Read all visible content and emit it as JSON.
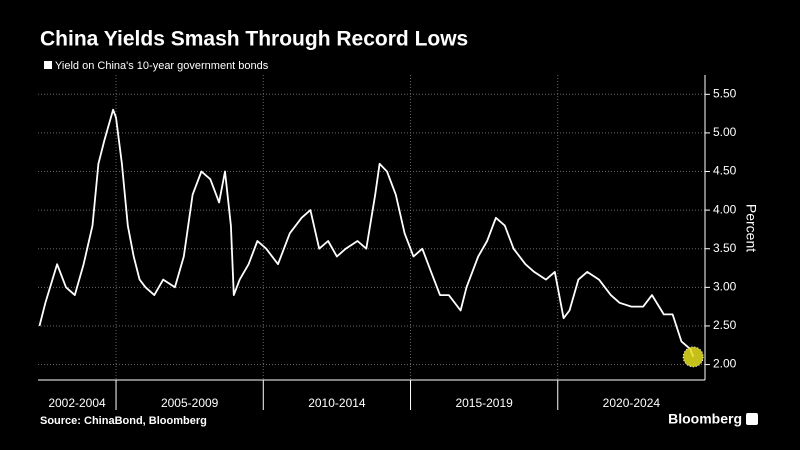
{
  "chart_data": {
    "type": "line",
    "title": "China Yields Smash Through Record Lows",
    "y_label": "Percent",
    "source": "Source: ChinaBond, Bloomberg",
    "brand": "Bloomberg",
    "xlim": [
      2002.35,
      2025.0
    ],
    "xperiods": [
      {
        "label": "2002-2004",
        "start": 2002.35,
        "end": 2005
      },
      {
        "label": "2005-2009",
        "start": 2005,
        "end": 2010
      },
      {
        "label": "2010-2014",
        "start": 2010,
        "end": 2015
      },
      {
        "label": "2015-2019",
        "start": 2015,
        "end": 2020
      },
      {
        "label": "2020-2024",
        "start": 2020,
        "end": 2025.0
      }
    ],
    "ylim": [
      1.8,
      5.75
    ],
    "yticks": [
      {
        "value": 2.0,
        "label": "2.00"
      },
      {
        "value": 2.5,
        "label": "2.50"
      },
      {
        "value": 3.0,
        "label": "3.00"
      },
      {
        "value": 3.5,
        "label": "3.50"
      },
      {
        "value": 4.0,
        "label": "4.00"
      },
      {
        "value": 4.5,
        "label": "4.50"
      },
      {
        "value": 5.0,
        "label": "5.00"
      },
      {
        "value": 5.5,
        "label": "5.50"
      }
    ],
    "grid": true,
    "highlight_last": true,
    "highlight_color": "#e6e01e",
    "series": [
      {
        "name": "Yield on China's 10-year government bonds",
        "color": "#ffffff",
        "x": [
          2002.4,
          2002.6,
          2003.0,
          2003.3,
          2003.6,
          2003.9,
          2004.2,
          2004.4,
          2004.6,
          2004.9,
          2005.0,
          2005.2,
          2005.4,
          2005.6,
          2005.8,
          2006.0,
          2006.3,
          2006.6,
          2007.0,
          2007.3,
          2007.6,
          2007.9,
          2008.2,
          2008.5,
          2008.7,
          2008.9,
          2009.0,
          2009.2,
          2009.5,
          2009.8,
          2010.1,
          2010.5,
          2010.9,
          2011.3,
          2011.6,
          2011.9,
          2012.2,
          2012.5,
          2012.8,
          2013.2,
          2013.5,
          2013.8,
          2013.95,
          2014.2,
          2014.5,
          2014.8,
          2015.1,
          2015.4,
          2015.7,
          2016.0,
          2016.3,
          2016.7,
          2016.9,
          2017.3,
          2017.6,
          2017.9,
          2018.2,
          2018.5,
          2018.9,
          2019.2,
          2019.6,
          2019.9,
          2020.2,
          2020.4,
          2020.7,
          2021.0,
          2021.4,
          2021.8,
          2022.1,
          2022.5,
          2022.9,
          2023.2,
          2023.6,
          2023.9,
          2024.2,
          2024.5,
          2024.6
        ],
        "values": [
          2.5,
          2.8,
          3.3,
          3.0,
          2.9,
          3.3,
          3.8,
          4.6,
          4.9,
          5.3,
          5.2,
          4.6,
          3.8,
          3.4,
          3.1,
          3.0,
          2.9,
          3.1,
          3.0,
          3.4,
          4.2,
          4.5,
          4.4,
          4.1,
          4.5,
          3.8,
          2.9,
          3.1,
          3.3,
          3.6,
          3.5,
          3.3,
          3.7,
          3.9,
          4.0,
          3.5,
          3.6,
          3.4,
          3.5,
          3.6,
          3.5,
          4.2,
          4.6,
          4.5,
          4.2,
          3.7,
          3.4,
          3.5,
          3.2,
          2.9,
          2.9,
          2.7,
          3.0,
          3.4,
          3.6,
          3.9,
          3.8,
          3.5,
          3.3,
          3.2,
          3.1,
          3.2,
          2.6,
          2.7,
          3.1,
          3.2,
          3.1,
          2.9,
          2.8,
          2.75,
          2.75,
          2.9,
          2.65,
          2.65,
          2.3,
          2.2,
          2.1
        ]
      }
    ]
  }
}
